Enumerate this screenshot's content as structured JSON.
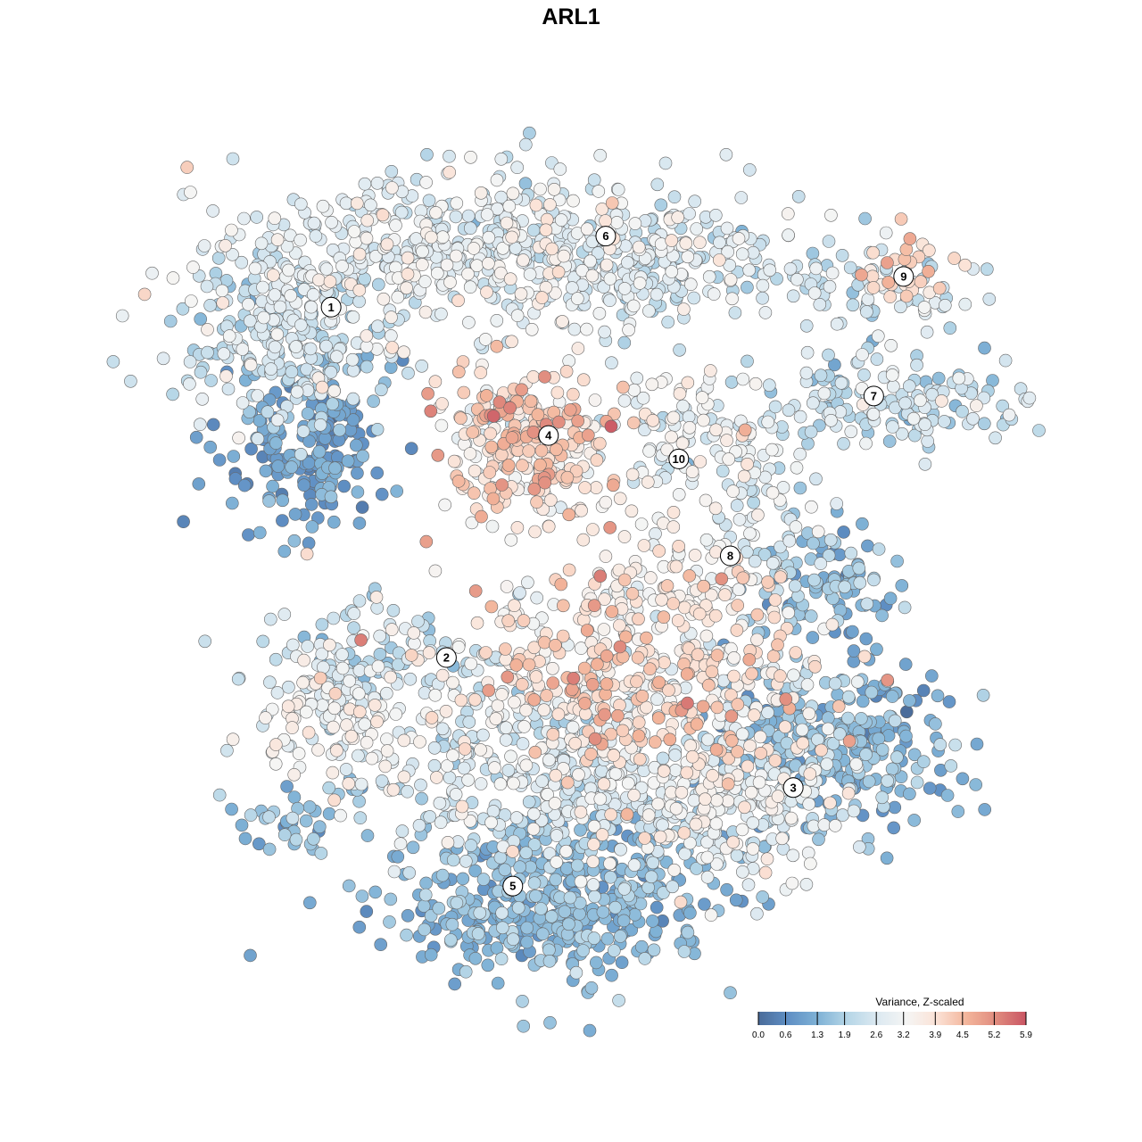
{
  "chart_data": {
    "type": "scatter",
    "title": "ARL1",
    "xlabel": "",
    "ylabel": "",
    "xlim": [
      0,
      100
    ],
    "ylim": [
      0,
      100
    ],
    "grid": false,
    "legend": {
      "title": "Variance, Z-scaled",
      "placement": "bottom-right",
      "ticks": [
        "0.0",
        "0.6",
        "1.3",
        "1.9",
        "2.6",
        "3.2",
        "3.9",
        "4.5",
        "5.2",
        "5.9"
      ],
      "range": [
        0,
        5.9
      ],
      "colors": [
        "#4a6b99",
        "#5f8fc4",
        "#7fb2d6",
        "#b6d6e7",
        "#dce9f1",
        "#f5f5f4",
        "#fbe2d6",
        "#f3b59b",
        "#e08b7e",
        "#c95563"
      ]
    },
    "cluster_labels": [
      {
        "label": "1",
        "x": 18.4,
        "y": 82.4
      },
      {
        "label": "2",
        "x": 32.3,
        "y": 39.0
      },
      {
        "label": "3",
        "x": 74.1,
        "y": 22.9
      },
      {
        "label": "4",
        "x": 44.6,
        "y": 66.5
      },
      {
        "label": "5",
        "x": 40.3,
        "y": 10.7
      },
      {
        "label": "6",
        "x": 51.5,
        "y": 91.2
      },
      {
        "label": "7",
        "x": 83.8,
        "y": 71.4
      },
      {
        "label": "8",
        "x": 66.5,
        "y": 51.6
      },
      {
        "label": "9",
        "x": 87.4,
        "y": 86.2
      },
      {
        "label": "10",
        "x": 60.3,
        "y": 63.6
      }
    ],
    "point_groups": [
      {
        "x": 32.3,
        "y": 89.5,
        "sx": 14,
        "sy": 5,
        "n": 500,
        "mean": 2.8,
        "sd": 0.5
      },
      {
        "x": 12.9,
        "y": 78.5,
        "sx": 6.5,
        "sy": 5.5,
        "n": 250,
        "mean": 2.3,
        "sd": 0.6
      },
      {
        "x": 16.1,
        "y": 65.2,
        "sx": 4.8,
        "sy": 5,
        "n": 180,
        "mean": 1.0,
        "sd": 0.4
      },
      {
        "x": 55.9,
        "y": 88.4,
        "sx": 7.5,
        "sy": 4.4,
        "n": 200,
        "mean": 2.6,
        "sd": 0.5
      },
      {
        "x": 41.9,
        "y": 65.2,
        "sx": 5.4,
        "sy": 5,
        "n": 280,
        "mean": 3.9,
        "sd": 0.7
      },
      {
        "x": 81.7,
        "y": 85.1,
        "sx": 6.5,
        "sy": 2.8,
        "n": 80,
        "mean": 2.4,
        "sd": 0.5
      },
      {
        "x": 87.1,
        "y": 87.3,
        "sx": 2.7,
        "sy": 2.2,
        "n": 30,
        "mean": 4.2,
        "sd": 0.5
      },
      {
        "x": 86.0,
        "y": 70.7,
        "sx": 8.6,
        "sy": 2.8,
        "n": 150,
        "mean": 2.3,
        "sd": 0.5
      },
      {
        "x": 61.3,
        "y": 66.3,
        "sx": 4.3,
        "sy": 4.4,
        "n": 80,
        "mean": 3.0,
        "sd": 0.6
      },
      {
        "x": 69.9,
        "y": 58.6,
        "sx": 3.2,
        "sy": 5.5,
        "n": 80,
        "mean": 2.8,
        "sd": 0.5
      },
      {
        "x": 77.4,
        "y": 48.6,
        "sx": 4.3,
        "sy": 3.3,
        "n": 100,
        "mean": 1.5,
        "sd": 0.5
      },
      {
        "x": 60.2,
        "y": 49.7,
        "sx": 5.4,
        "sy": 2.8,
        "n": 60,
        "mean": 3.3,
        "sd": 0.5
      },
      {
        "x": 53.8,
        "y": 36.5,
        "sx": 11.8,
        "sy": 6.6,
        "n": 500,
        "mean": 3.7,
        "sd": 0.7
      },
      {
        "x": 45.2,
        "y": 23.2,
        "sx": 11.8,
        "sy": 5.5,
        "n": 350,
        "mean": 2.6,
        "sd": 0.5
      },
      {
        "x": 23.7,
        "y": 38.7,
        "sx": 6.5,
        "sy": 3.3,
        "n": 120,
        "mean": 2.3,
        "sd": 0.5
      },
      {
        "x": 19.4,
        "y": 30.9,
        "sx": 4.8,
        "sy": 3.9,
        "n": 100,
        "mean": 3.0,
        "sd": 0.5
      },
      {
        "x": 79.6,
        "y": 28.7,
        "sx": 7.5,
        "sy": 5,
        "n": 300,
        "mean": 1.4,
        "sd": 0.5
      },
      {
        "x": 67.7,
        "y": 19.9,
        "sx": 6.5,
        "sy": 4.4,
        "n": 200,
        "mean": 3.0,
        "sd": 0.5
      },
      {
        "x": 45.2,
        "y": 8.8,
        "sx": 9.7,
        "sy": 5,
        "n": 450,
        "mean": 1.4,
        "sd": 0.4
      },
      {
        "x": 15.1,
        "y": 18.8,
        "sx": 4.3,
        "sy": 2.2,
        "n": 40,
        "mean": 1.5,
        "sd": 0.4
      }
    ]
  }
}
